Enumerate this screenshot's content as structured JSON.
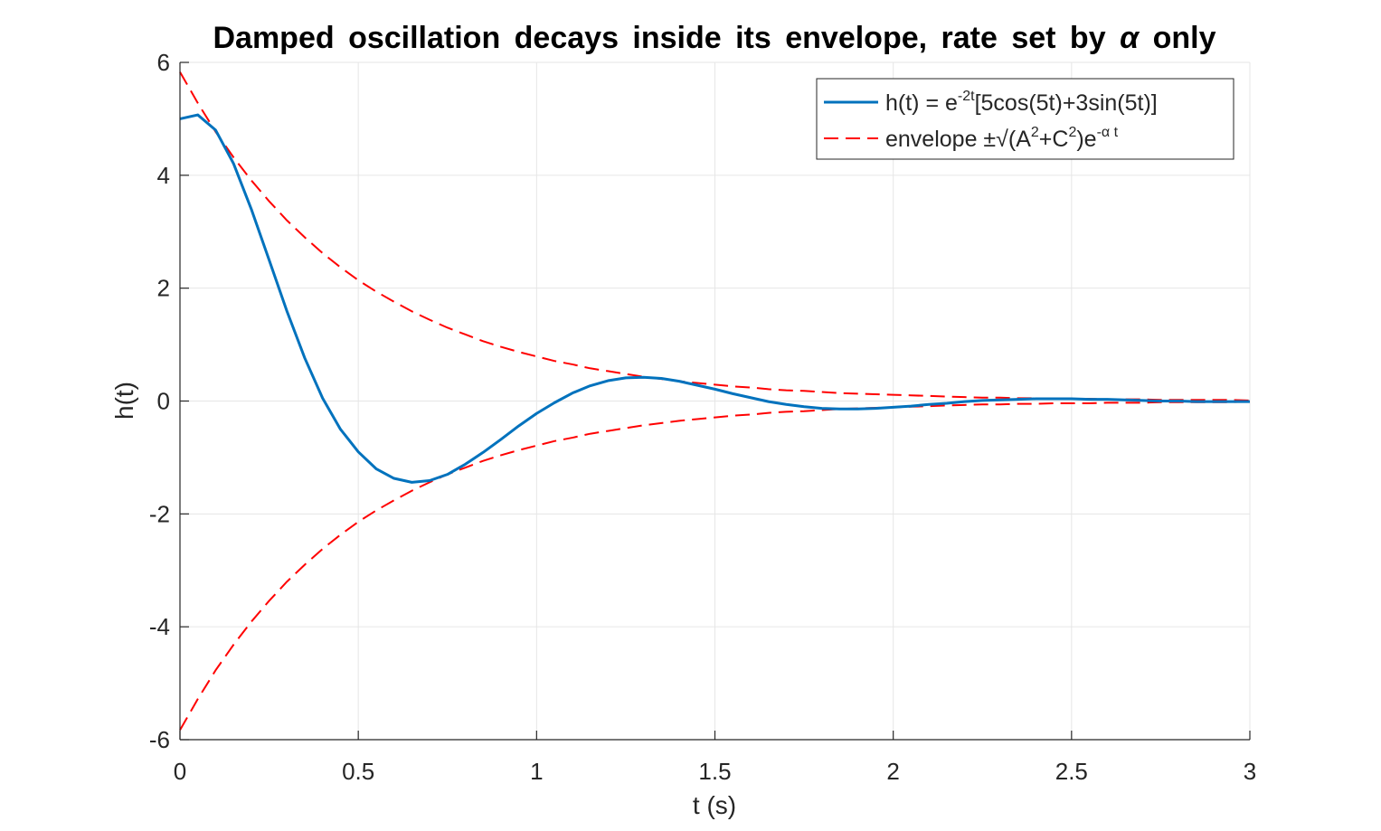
{
  "chart_data": {
    "type": "line",
    "title": {
      "main": "Damped oscillation decays inside its envelope, rate set by",
      "symbol": "α",
      "tail": "only"
    },
    "xlabel": "t (s)",
    "ylabel": "h(t)",
    "xlim": [
      0,
      3
    ],
    "ylim": [
      -6,
      6
    ],
    "xticks": [
      0,
      0.5,
      1,
      1.5,
      2,
      2.5,
      3
    ],
    "xtick_labels": [
      "0",
      "0.5",
      "1",
      "1.5",
      "2",
      "2.5",
      "3"
    ],
    "yticks": [
      -6,
      -4,
      -2,
      0,
      2,
      4,
      6
    ],
    "ytick_labels": [
      "-6",
      "-4",
      "-2",
      "0",
      "2",
      "4",
      "6"
    ],
    "grid": true,
    "legend_position": "top-right",
    "x": [
      0,
      0.05,
      0.1,
      0.15,
      0.2,
      0.25,
      0.3,
      0.35,
      0.4,
      0.45,
      0.5,
      0.55,
      0.6,
      0.65,
      0.7,
      0.75,
      0.8,
      0.85,
      0.9,
      0.95,
      1.0,
      1.05,
      1.1,
      1.15,
      1.2,
      1.25,
      1.3,
      1.35,
      1.4,
      1.45,
      1.5,
      1.55,
      1.6,
      1.65,
      1.7,
      1.75,
      1.8,
      1.85,
      1.9,
      1.95,
      2.0,
      2.05,
      2.1,
      2.15,
      2.2,
      2.25,
      2.3,
      2.35,
      2.4,
      2.45,
      2.5,
      2.55,
      2.6,
      2.65,
      2.7,
      2.75,
      2.8,
      2.85,
      2.9,
      2.95,
      3.0
    ],
    "series": [
      {
        "label": {
          "a": "h(t)  =  e",
          "sup": "-2t",
          "b": "[5cos(5t)+3sin(5t)]"
        },
        "style": "solid",
        "color": "#0072BD",
        "values": [
          5.0,
          5.07,
          4.8,
          4.21,
          3.4,
          2.5,
          1.59,
          0.76,
          0.05,
          -0.5,
          -0.9,
          -1.2,
          -1.37,
          -1.44,
          -1.41,
          -1.3,
          -1.12,
          -0.91,
          -0.68,
          -0.44,
          -0.22,
          -0.03,
          0.14,
          0.27,
          0.36,
          0.41,
          0.42,
          0.4,
          0.35,
          0.28,
          0.21,
          0.13,
          0.06,
          -0.01,
          -0.06,
          -0.1,
          -0.13,
          -0.14,
          -0.14,
          -0.13,
          -0.11,
          -0.09,
          -0.06,
          -0.04,
          -0.01,
          0.01,
          0.02,
          0.03,
          0.04,
          0.04,
          0.04,
          0.03,
          0.03,
          0.02,
          0.01,
          0.0,
          0.0,
          -0.01,
          -0.01,
          -0.01,
          -0.01
        ]
      },
      {
        "label": {
          "a": "envelope  ±√(A",
          "sup1": "2",
          "b": "+C",
          "sup2": "2",
          "c": ")e",
          "sup3": "-α  t"
        },
        "style": "dashed",
        "color": "#FF0000",
        "values_upper": [
          5.83,
          5.28,
          4.77,
          4.32,
          3.91,
          3.54,
          3.2,
          2.9,
          2.62,
          2.37,
          2.14,
          1.94,
          1.76,
          1.59,
          1.44,
          1.3,
          1.18,
          1.06,
          0.96,
          0.87,
          0.79,
          0.71,
          0.65,
          0.58,
          0.53,
          0.48,
          0.43,
          0.39,
          0.35,
          0.32,
          0.29,
          0.26,
          0.24,
          0.21,
          0.19,
          0.18,
          0.16,
          0.14,
          0.13,
          0.12,
          0.11,
          0.1,
          0.09,
          0.08,
          0.07,
          0.06,
          0.06,
          0.05,
          0.05,
          0.04,
          0.04,
          0.04,
          0.03,
          0.03,
          0.03,
          0.02,
          0.02,
          0.02,
          0.02,
          0.02,
          0.01
        ],
        "values_lower": [
          -5.83,
          -5.28,
          -4.77,
          -4.32,
          -3.91,
          -3.54,
          -3.2,
          -2.9,
          -2.62,
          -2.37,
          -2.14,
          -1.94,
          -1.76,
          -1.59,
          -1.44,
          -1.3,
          -1.18,
          -1.06,
          -0.96,
          -0.87,
          -0.79,
          -0.71,
          -0.65,
          -0.58,
          -0.53,
          -0.48,
          -0.43,
          -0.39,
          -0.35,
          -0.32,
          -0.29,
          -0.26,
          -0.24,
          -0.21,
          -0.19,
          -0.18,
          -0.16,
          -0.14,
          -0.13,
          -0.12,
          -0.11,
          -0.1,
          -0.09,
          -0.08,
          -0.07,
          -0.06,
          -0.06,
          -0.05,
          -0.05,
          -0.04,
          -0.04,
          -0.04,
          -0.03,
          -0.03,
          -0.03,
          -0.02,
          -0.02,
          -0.02,
          -0.02,
          -0.02,
          -0.01
        ]
      }
    ]
  }
}
